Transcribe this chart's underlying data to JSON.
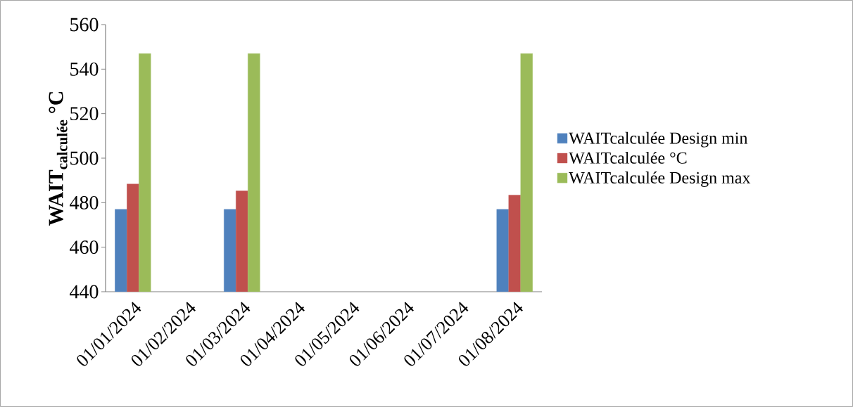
{
  "chart_data": {
    "type": "bar",
    "ylabel": "WAIT$_{calculée}$ °C",
    "categories": [
      "01/01/2024",
      "01/02/2024",
      "01/03/2024",
      "01/04/2024",
      "01/05/2024",
      "01/06/2024",
      "01/07/2024",
      "01/08/2024"
    ],
    "series": [
      {
        "name": "WAITcalculée Design min",
        "color": "#4f81bd",
        "values": [
          477,
          null,
          477,
          null,
          null,
          null,
          null,
          477
        ]
      },
      {
        "name": "WAITcalculée °C",
        "color": "#c0504d",
        "values": [
          488.4,
          null,
          485.3,
          null,
          null,
          null,
          null,
          483.4
        ]
      },
      {
        "name": "WAITcalculée Design max",
        "color": "#9bbb59",
        "values": [
          547,
          null,
          547,
          null,
          null,
          null,
          null,
          547
        ]
      }
    ],
    "ylim": [
      440,
      560
    ],
    "yticks": [
      440,
      460,
      480,
      500,
      520,
      540,
      560
    ],
    "grid": false,
    "legend": "right"
  }
}
